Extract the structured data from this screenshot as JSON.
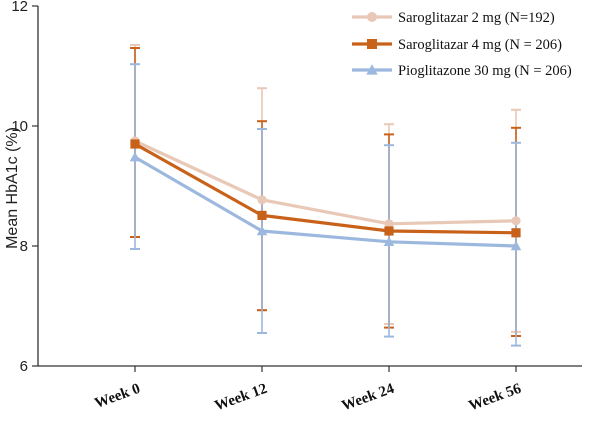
{
  "chart_data": {
    "type": "line",
    "categories": [
      "Week 0",
      "Week 12",
      "Week 24",
      "Week 56"
    ],
    "ylabel": "Mean HbA1c (%)",
    "xlabel": "",
    "ylim": [
      6,
      12
    ],
    "yticks": [
      6,
      8,
      10,
      12
    ],
    "grid": false,
    "legend_position": "top-right",
    "series": [
      {
        "name": "Saroglitazar 2 mg (N=192)",
        "color": "#E8C8B6",
        "marker": "circle",
        "values": [
          9.75,
          8.77,
          8.37,
          8.42
        ],
        "error_upper": [
          11.35,
          10.63,
          10.03,
          10.27
        ],
        "error_lower": [
          8.15,
          6.93,
          6.7,
          6.57
        ]
      },
      {
        "name": "Saroglitazar 4 mg (N = 206)",
        "color": "#C8621B",
        "marker": "square",
        "values": [
          9.7,
          8.51,
          8.25,
          8.22
        ],
        "error_upper": [
          11.3,
          10.08,
          9.86,
          9.97
        ],
        "error_lower": [
          8.15,
          6.93,
          6.64,
          6.5
        ]
      },
      {
        "name": "Pioglitazone 30 mg (N = 206)",
        "color": "#9DB8DE",
        "marker": "triangle",
        "values": [
          9.48,
          8.25,
          8.07,
          8.0
        ],
        "error_upper": [
          11.03,
          9.95,
          9.68,
          9.72
        ],
        "error_lower": [
          7.95,
          6.55,
          6.49,
          6.34
        ]
      }
    ]
  }
}
